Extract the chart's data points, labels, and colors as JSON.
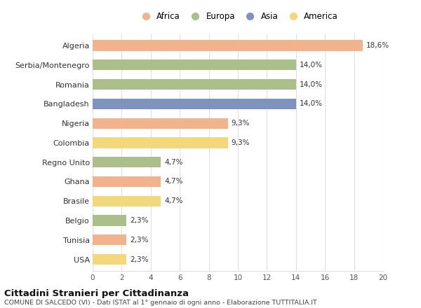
{
  "countries": [
    "Algeria",
    "Serbia/Montenegro",
    "Romania",
    "Bangladesh",
    "Nigeria",
    "Colombia",
    "Regno Unito",
    "Ghana",
    "Brasile",
    "Belgio",
    "Tunisia",
    "USA"
  ],
  "values": [
    18.6,
    14.0,
    14.0,
    14.0,
    9.3,
    9.3,
    4.7,
    4.7,
    4.7,
    2.3,
    2.3,
    2.3
  ],
  "labels": [
    "18,6%",
    "14,0%",
    "14,0%",
    "14,0%",
    "9,3%",
    "9,3%",
    "4,7%",
    "4,7%",
    "4,7%",
    "2,3%",
    "2,3%",
    "2,3%"
  ],
  "continents": [
    "Africa",
    "Europa",
    "Europa",
    "Asia",
    "Africa",
    "America",
    "Europa",
    "Africa",
    "America",
    "Europa",
    "Africa",
    "America"
  ],
  "colors": {
    "Africa": "#F2B28C",
    "Europa": "#ABBF8A",
    "Asia": "#7F93C0",
    "America": "#F2D87A"
  },
  "legend_order": [
    "Africa",
    "Europa",
    "Asia",
    "America"
  ],
  "title": "Cittadini Stranieri per Cittadinanza",
  "subtitle": "COMUNE DI SALCEDO (VI) - Dati ISTAT al 1° gennaio di ogni anno - Elaborazione TUTTITALIA.IT",
  "xlim": [
    0,
    20
  ],
  "xticks": [
    0,
    2,
    4,
    6,
    8,
    10,
    12,
    14,
    16,
    18,
    20
  ],
  "background_color": "#ffffff",
  "grid_color": "#e0e0e0",
  "bar_height": 0.55
}
